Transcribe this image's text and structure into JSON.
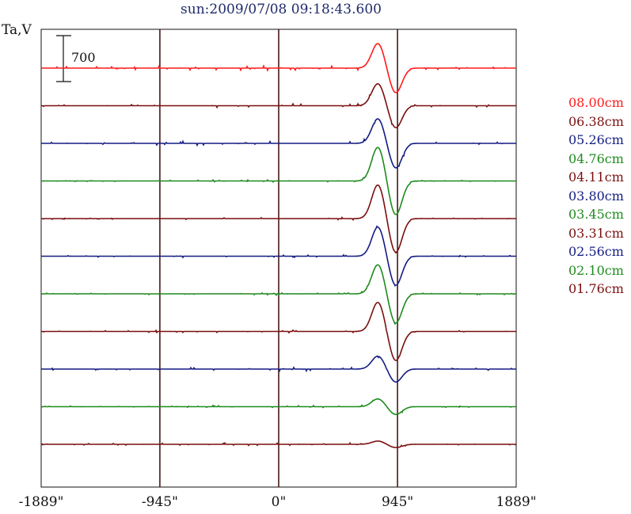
{
  "chart_data": {
    "type": "line",
    "title": "sun:2009/07/08 09:18:43.600",
    "ylabel": "Ta,V",
    "scale_bar": "700",
    "xlim": [
      -1889,
      1889
    ],
    "x_ticks": [
      "-1889\"",
      "-945\"",
      "0\"",
      "945\"",
      "1889\""
    ],
    "x_tick_values": [
      -1889,
      -945,
      0,
      945,
      1889
    ],
    "vertical_grid": [
      -945,
      0,
      945
    ],
    "series": [
      {
        "name": "08.00cm",
        "color": "#ff1a1a",
        "amp": 380,
        "noise": 70
      },
      {
        "name": "06.38cm",
        "color": "#7a0f0f",
        "amp": 340,
        "noise": 60
      },
      {
        "name": "05.26cm",
        "color": "#141c82",
        "amp": 380,
        "noise": 60
      },
      {
        "name": "04.76cm",
        "color": "#1e8a1e",
        "amp": 520,
        "noise": 30
      },
      {
        "name": "04.11cm",
        "color": "#7a0f0f",
        "amp": 520,
        "noise": 40
      },
      {
        "name": "03.80cm",
        "color": "#141c82",
        "amp": 450,
        "noise": 40
      },
      {
        "name": "03.45cm",
        "color": "#1e8a1e",
        "amp": 450,
        "noise": 40
      },
      {
        "name": "03.31cm",
        "color": "#7a0f0f",
        "amp": 450,
        "noise": 40
      },
      {
        "name": "02.56cm",
        "color": "#141c82",
        "amp": 200,
        "noise": 60
      },
      {
        "name": "02.10cm",
        "color": "#1e8a1e",
        "amp": 120,
        "noise": 40
      },
      {
        "name": "01.76cm",
        "color": "#7a0f0f",
        "amp": 50,
        "noise": 40
      }
    ]
  }
}
